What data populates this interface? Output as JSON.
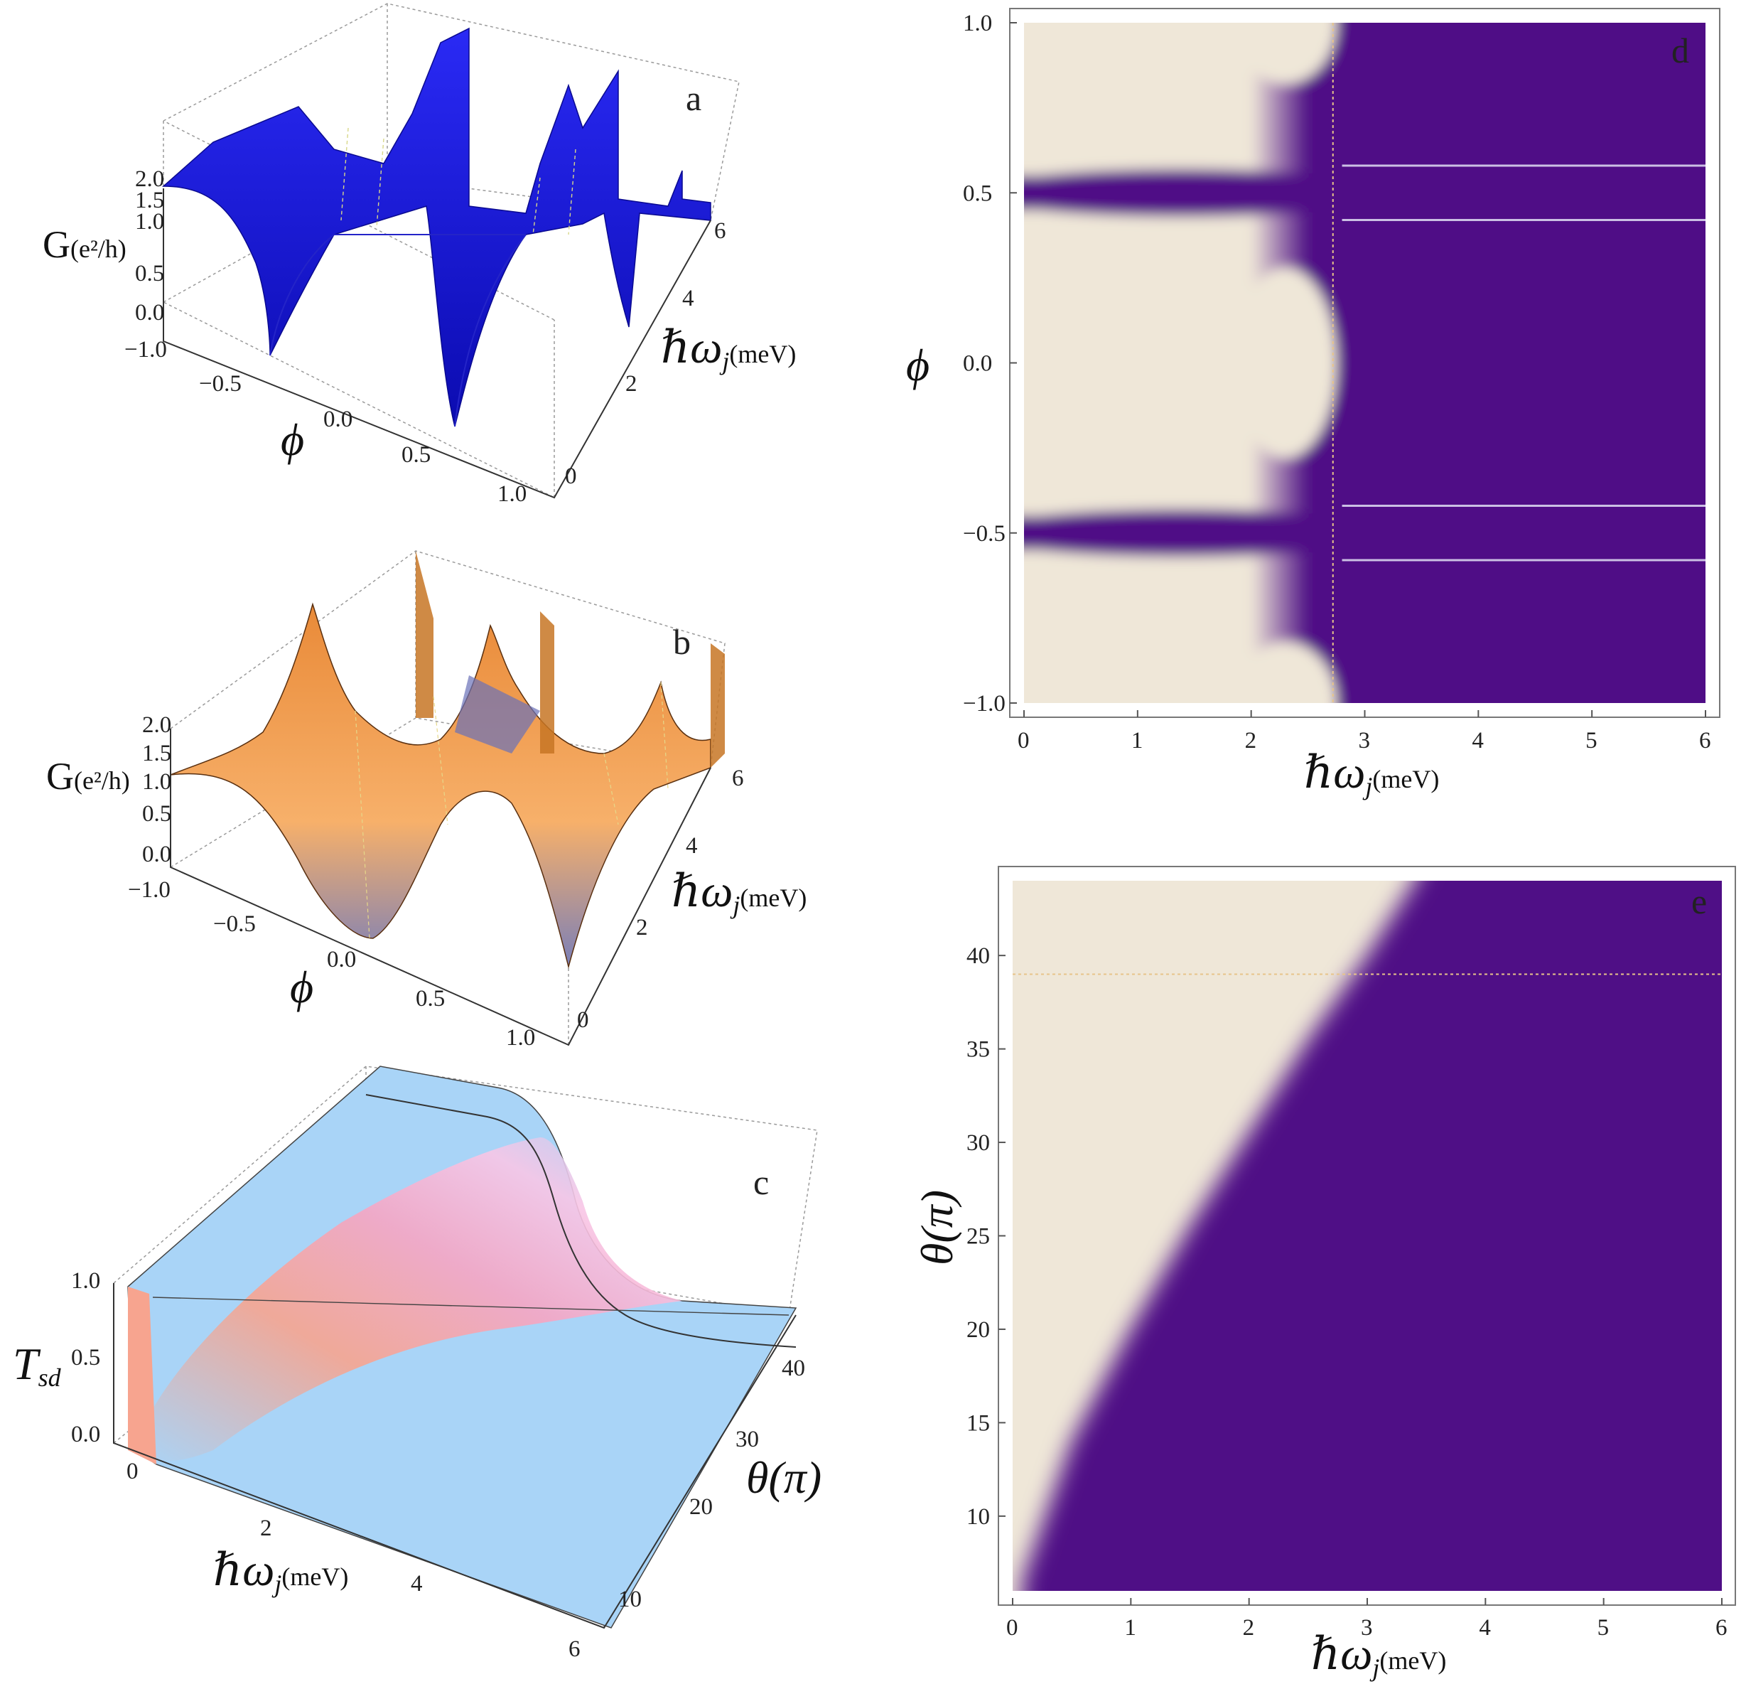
{
  "colors": {
    "beige": "#efe7d8",
    "purple": "#4f0f86",
    "blue_surface": "#1515e8",
    "orange_surface": "#f3a052",
    "light_blue": "#a9d4f7",
    "pink": "#f6a6c4",
    "salmon": "#f7a48f"
  },
  "chart_data": [
    {
      "id": "a",
      "type": "surface3d",
      "panel_label": "a",
      "zlabel": "G",
      "zlabel_unit": "(e²/h)",
      "xlabel": "ϕ",
      "ylabel": "ℏω",
      "ylabel_sub": "j",
      "ylabel_unit": "(meV)",
      "x_ticks": [
        "−1.0",
        "−0.5",
        "0.0",
        "0.5",
        "1.0"
      ],
      "y_ticks": [
        "0",
        "2",
        "4",
        "6"
      ],
      "z_ticks": [
        "0.0",
        "0.5",
        "1.0",
        "1.5",
        "2.0"
      ],
      "xlim": [
        -1,
        1
      ],
      "ylim": [
        0,
        6
      ],
      "zlim": [
        0,
        2
      ],
      "description_minima_phi": [
        -0.5,
        0.5
      ]
    },
    {
      "id": "b",
      "type": "surface3d",
      "panel_label": "b",
      "zlabel": "G",
      "zlabel_unit": "(e²/h)",
      "xlabel": "ϕ",
      "ylabel": "ℏω",
      "ylabel_sub": "j",
      "ylabel_unit": "(meV)",
      "x_ticks": [
        "−1.0",
        "−0.5",
        "0.0",
        "0.5",
        "1.0"
      ],
      "y_ticks": [
        "0",
        "2",
        "4",
        "6"
      ],
      "z_ticks": [
        "0.0",
        "0.5",
        "1.0",
        "1.5",
        "2.0"
      ],
      "xlim": [
        -1,
        1
      ],
      "ylim": [
        0,
        6
      ],
      "zlim": [
        0,
        2
      ]
    },
    {
      "id": "c",
      "type": "surface3d",
      "panel_label": "c",
      "zlabel": "T",
      "zlabel_sub": "sd",
      "xlabel": "ℏω",
      "xlabel_sub": "j",
      "xlabel_unit": "(meV)",
      "ylabel": "θ(π)",
      "x_ticks": [
        "0",
        "2",
        "4",
        "6"
      ],
      "y_ticks": [
        "10",
        "20",
        "30",
        "40"
      ],
      "z_ticks": [
        "0.0",
        "0.5",
        "1.0"
      ],
      "xlim": [
        0,
        6
      ],
      "ylim": [
        6,
        44
      ],
      "zlim": [
        0,
        1
      ]
    },
    {
      "id": "d",
      "type": "heatmap",
      "panel_label": "d",
      "xlabel": "ℏω",
      "xlabel_sub": "j",
      "xlabel_unit": "(meV)",
      "ylabel": "ϕ",
      "x_ticks": [
        "0",
        "1",
        "2",
        "3",
        "4",
        "5",
        "6"
      ],
      "y_ticks": [
        "−1.0",
        "−0.5",
        "0.0",
        "0.5",
        "1.0"
      ],
      "xlim": [
        0,
        6
      ],
      "ylim": [
        -1,
        1
      ],
      "dashed_line_x": 2.72,
      "resonance_phi": [
        0.58,
        0.42,
        -0.42,
        -0.58
      ],
      "dark_band_phi": [
        0.5,
        -0.5
      ]
    },
    {
      "id": "e",
      "type": "heatmap",
      "panel_label": "e",
      "xlabel": "ℏω",
      "xlabel_sub": "j",
      "xlabel_unit": "(meV)",
      "ylabel": "θ(π)",
      "x_ticks": [
        "0",
        "1",
        "2",
        "3",
        "4",
        "5",
        "6"
      ],
      "y_ticks": [
        "10",
        "15",
        "20",
        "25",
        "30",
        "35",
        "40"
      ],
      "xlim": [
        0,
        6
      ],
      "ylim": [
        6,
        44
      ],
      "dashed_line_y": 39,
      "boundary": {
        "x": [
          0.08,
          0.5,
          1.0,
          1.5,
          2.0,
          2.5,
          3.0,
          3.4
        ],
        "y": [
          6.5,
          14,
          20,
          25.5,
          30.5,
          35.5,
          40,
          44
        ]
      }
    }
  ]
}
